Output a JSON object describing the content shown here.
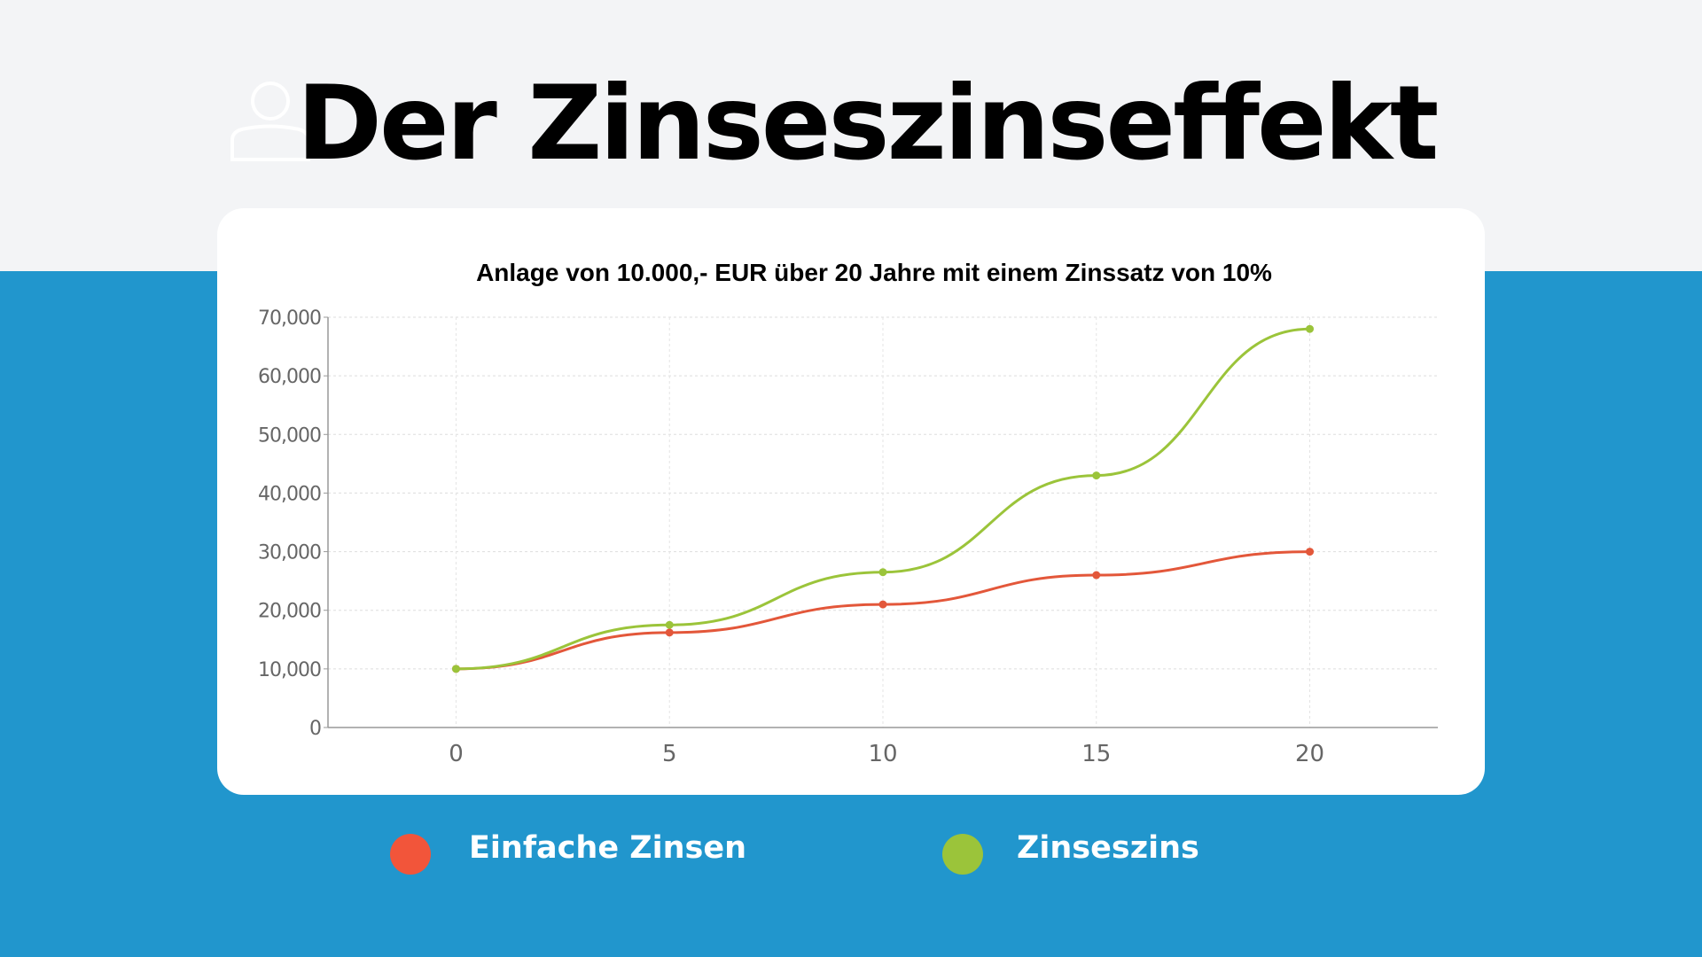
{
  "header": {
    "title": "Der Zinseszinseffekt",
    "icon": "user-icon"
  },
  "colors": {
    "background_top": "#f3f4f6",
    "background_bottom": "#2196cd",
    "simple": "#e3573a",
    "compound": "#9bc43a",
    "simple_legend": "#f2553a",
    "compound_legend": "#9bc43a"
  },
  "chart_data": {
    "type": "line",
    "title": "Anlage von 10.000,- EUR über 20 Jahre mit einem Zinssatz von 10%",
    "x": [
      0,
      5,
      10,
      15,
      20
    ],
    "x_ticks": [
      "0",
      "5",
      "10",
      "15",
      "20"
    ],
    "xlim": [
      -3,
      23
    ],
    "ylim": [
      0,
      70000
    ],
    "y_ticks": [
      "0",
      "10,000",
      "20,000",
      "30,000",
      "40,000",
      "50,000",
      "60,000",
      "70,000"
    ],
    "y_tick_values": [
      0,
      10000,
      20000,
      30000,
      40000,
      50000,
      60000,
      70000
    ],
    "grid": true,
    "legend_position": "bottom",
    "series": [
      {
        "name": "Einfache Zinsen",
        "values": [
          10000,
          16200,
          21000,
          26000,
          30000
        ]
      },
      {
        "name": "Zinseszins",
        "values": [
          10000,
          17500,
          26500,
          43000,
          68000
        ]
      }
    ]
  }
}
